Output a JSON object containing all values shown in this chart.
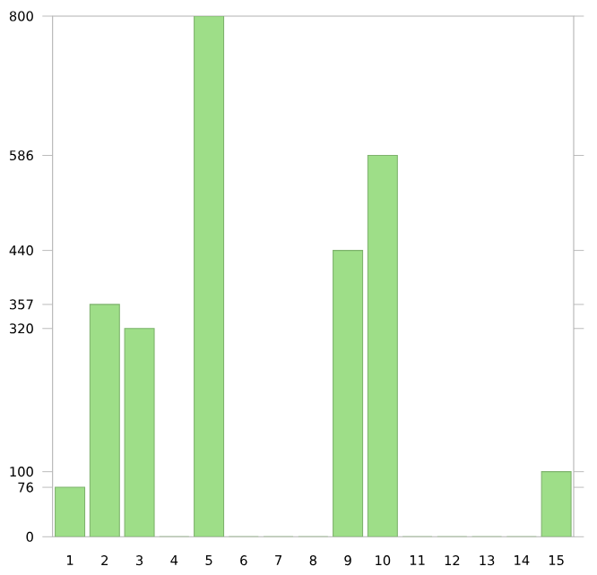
{
  "chart_data": {
    "type": "bar",
    "categories": [
      "1",
      "2",
      "3",
      "4",
      "5",
      "6",
      "7",
      "8",
      "9",
      "10",
      "11",
      "12",
      "13",
      "14",
      "15"
    ],
    "values": [
      76,
      357,
      320,
      0,
      800,
      0,
      0,
      0,
      440,
      586,
      0,
      0,
      0,
      0,
      100
    ],
    "color": "#9ede88",
    "ylim": [
      0,
      800
    ],
    "yticks": [
      0,
      76,
      100,
      320,
      357,
      440,
      586,
      800
    ],
    "grid": false
  }
}
